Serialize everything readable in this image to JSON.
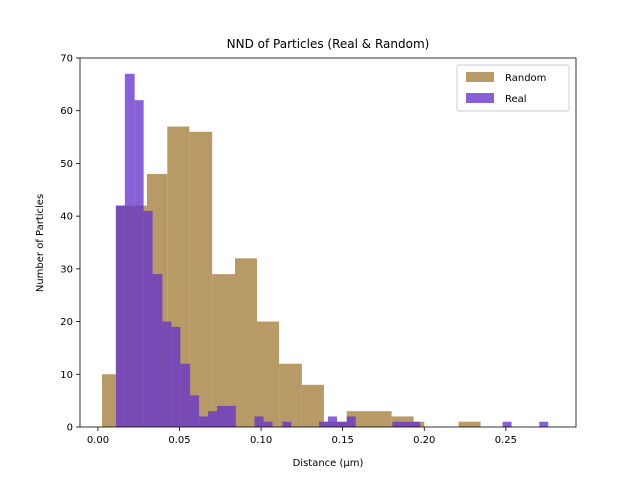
{
  "chart_data": {
    "type": "histogram",
    "title": "NND of Particles (Real & Random)",
    "xlabel": "Distance (μm)",
    "ylabel": "Number of Particles",
    "xlim": [
      -0.011,
      0.293
    ],
    "ylim": [
      0,
      70
    ],
    "xticks": [
      0.0,
      0.05,
      0.1,
      0.15,
      0.2,
      0.25
    ],
    "xtick_labels": [
      "0.00",
      "0.05",
      "0.10",
      "0.15",
      "0.20",
      "0.25"
    ],
    "yticks": [
      0,
      10,
      20,
      30,
      40,
      50,
      60,
      70
    ],
    "ytick_labels": [
      "0",
      "10",
      "20",
      "30",
      "40",
      "50",
      "60",
      "70"
    ],
    "grid": false,
    "legend_position": "top-right",
    "series": [
      {
        "name": "Random",
        "color": "#b89a66",
        "alpha": 1.0,
        "bins": [
          {
            "x0": 0.0025,
            "x1": 0.011,
            "count": 10
          },
          {
            "x0": 0.011,
            "x1": 0.03,
            "count": 42
          },
          {
            "x0": 0.03,
            "x1": 0.0425,
            "count": 48
          },
          {
            "x0": 0.0425,
            "x1": 0.056,
            "count": 57
          },
          {
            "x0": 0.056,
            "x1": 0.07,
            "count": 56
          },
          {
            "x0": 0.07,
            "x1": 0.084,
            "count": 29
          },
          {
            "x0": 0.084,
            "x1": 0.0975,
            "count": 32
          },
          {
            "x0": 0.0975,
            "x1": 0.111,
            "count": 20
          },
          {
            "x0": 0.111,
            "x1": 0.125,
            "count": 12
          },
          {
            "x0": 0.125,
            "x1": 0.1385,
            "count": 8
          },
          {
            "x0": 0.1385,
            "x1": 0.1525,
            "count": 1
          },
          {
            "x0": 0.1525,
            "x1": 0.18,
            "count": 3
          },
          {
            "x0": 0.18,
            "x1": 0.1935,
            "count": 2
          },
          {
            "x0": 0.1935,
            "x1": 0.2,
            "count": 1
          },
          {
            "x0": 0.221,
            "x1": 0.2345,
            "count": 1
          }
        ]
      },
      {
        "name": "Real",
        "color": "#6633cc",
        "alpha": 0.78,
        "bins": [
          {
            "x0": 0.011,
            "x1": 0.0165,
            "count": 42
          },
          {
            "x0": 0.0165,
            "x1": 0.0225,
            "count": 67
          },
          {
            "x0": 0.0225,
            "x1": 0.028,
            "count": 62
          },
          {
            "x0": 0.028,
            "x1": 0.0335,
            "count": 41
          },
          {
            "x0": 0.0335,
            "x1": 0.0395,
            "count": 29
          },
          {
            "x0": 0.0395,
            "x1": 0.045,
            "count": 20
          },
          {
            "x0": 0.045,
            "x1": 0.0505,
            "count": 19
          },
          {
            "x0": 0.0505,
            "x1": 0.0565,
            "count": 12
          },
          {
            "x0": 0.0565,
            "x1": 0.062,
            "count": 6
          },
          {
            "x0": 0.062,
            "x1": 0.0675,
            "count": 2
          },
          {
            "x0": 0.0675,
            "x1": 0.073,
            "count": 3
          },
          {
            "x0": 0.073,
            "x1": 0.0845,
            "count": 4
          },
          {
            "x0": 0.096,
            "x1": 0.1015,
            "count": 2
          },
          {
            "x0": 0.1015,
            "x1": 0.107,
            "count": 1
          },
          {
            "x0": 0.113,
            "x1": 0.1185,
            "count": 1
          },
          {
            "x0": 0.1355,
            "x1": 0.141,
            "count": 1
          },
          {
            "x0": 0.141,
            "x1": 0.1465,
            "count": 2
          },
          {
            "x0": 0.1465,
            "x1": 0.1525,
            "count": 1
          },
          {
            "x0": 0.1525,
            "x1": 0.158,
            "count": 2
          },
          {
            "x0": 0.1805,
            "x1": 0.192,
            "count": 1
          },
          {
            "x0": 0.192,
            "x1": 0.1975,
            "count": 1
          },
          {
            "x0": 0.248,
            "x1": 0.2535,
            "count": 1
          },
          {
            "x0": 0.2705,
            "x1": 0.276,
            "count": 1
          }
        ]
      }
    ]
  }
}
